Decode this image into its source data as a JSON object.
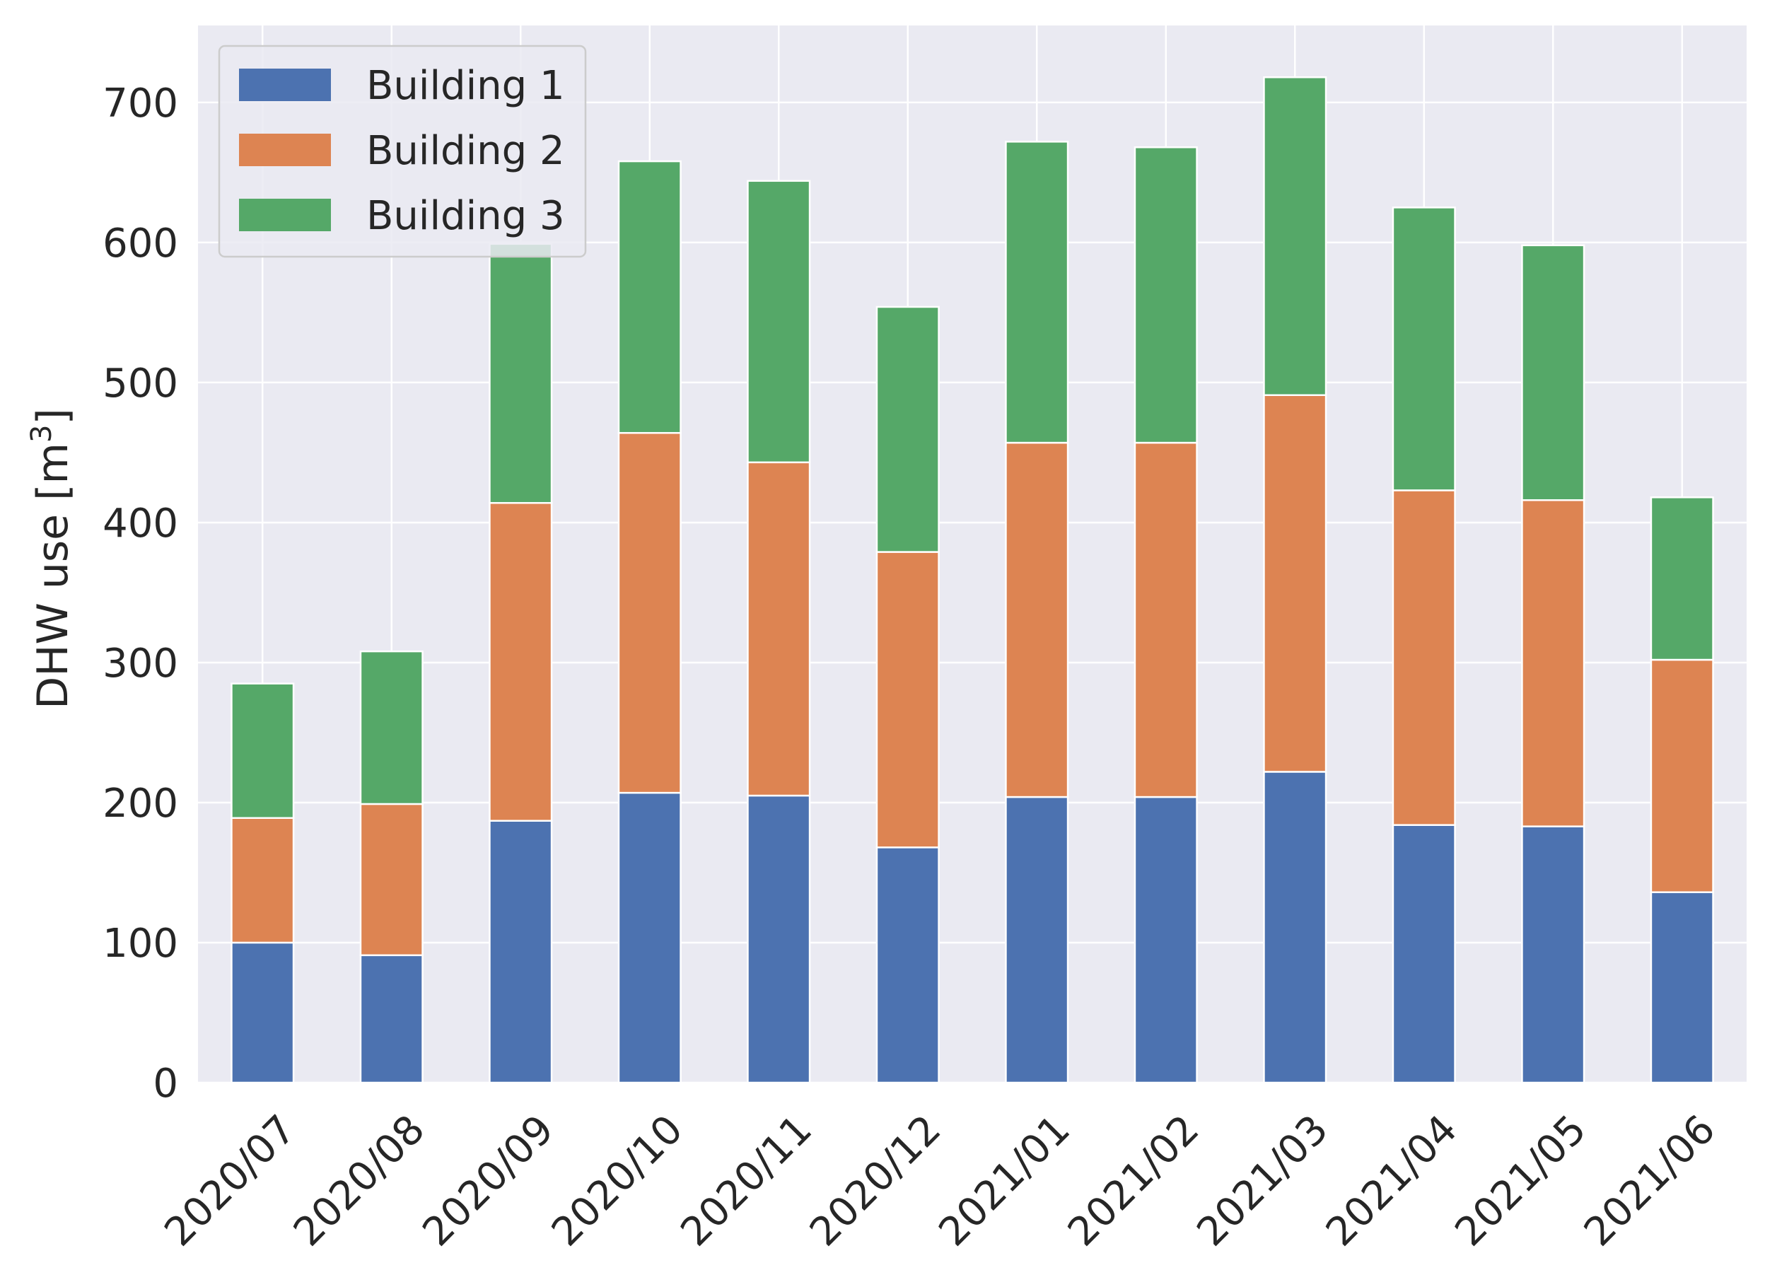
{
  "chart_data": {
    "type": "bar",
    "stacked": true,
    "categories": [
      "2020/07",
      "2020/08",
      "2020/09",
      "2020/10",
      "2020/11",
      "2020/12",
      "2021/01",
      "2021/02",
      "2021/03",
      "2021/04",
      "2021/05",
      "2021/06"
    ],
    "series": [
      {
        "name": "Building 1",
        "color": "#4c72b0",
        "values": [
          100,
          91,
          187,
          207,
          205,
          168,
          204,
          204,
          222,
          184,
          183,
          136
        ]
      },
      {
        "name": "Building 2",
        "color": "#dd8452",
        "values": [
          89,
          108,
          227,
          257,
          238,
          211,
          253,
          253,
          269,
          239,
          233,
          166
        ]
      },
      {
        "name": "Building 3",
        "color": "#55a868",
        "values": [
          96,
          109,
          185,
          194,
          201,
          175,
          215,
          211,
          227,
          202,
          182,
          116
        ]
      }
    ],
    "ylabel": "DHW use [m",
    "ylabel_superscript": "3",
    "ylabel_suffix": "]",
    "ylim": [
      0,
      755
    ],
    "yticks": [
      0,
      100,
      200,
      300,
      400,
      500,
      600,
      700
    ],
    "grid": true,
    "legend_position": "top-left",
    "background_color": "#eaeaf2"
  }
}
